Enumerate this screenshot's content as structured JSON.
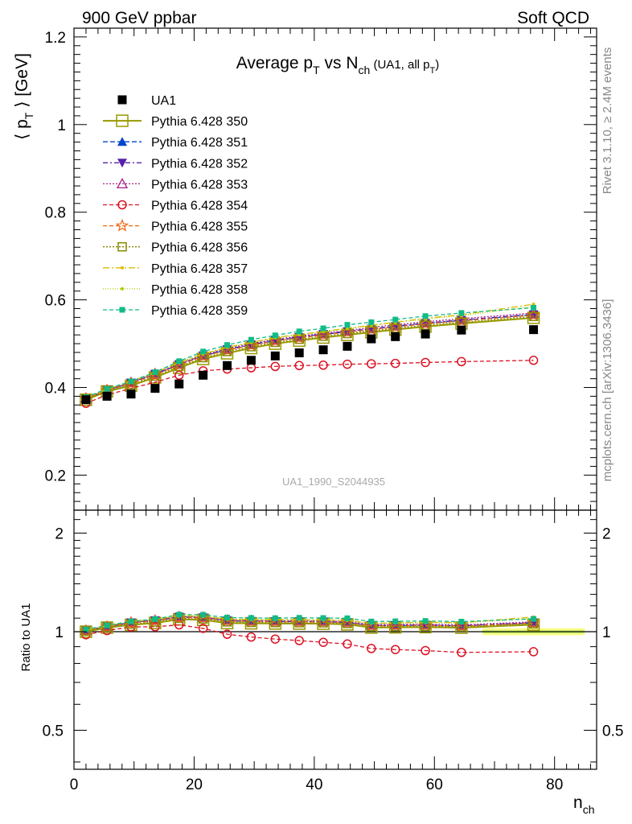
{
  "header": {
    "left": "900 GeV ppbar",
    "right": "Soft QCD"
  },
  "side_text": {
    "rivet": "Rivet 3.1.10, ≥ 2.4M events",
    "mcplots": "mcplots.cern.ch [arXiv:1306.3436]"
  },
  "chart_data": {
    "type": "line",
    "title": "Average pT vs Nch (UA1, all pT)",
    "title_parts": {
      "main": "Average p",
      "sub1": "T",
      "mid": " vs N",
      "sub2": "ch",
      "small": " (UA1, all p",
      "sub3": "T",
      "close": ")"
    },
    "analysis_label": "UA1_1990_S2044935",
    "xlabel": "n",
    "xlabel_sub": "ch",
    "ylabel": "⟨ p",
    "ylabel_sub": "T",
    "ylabel_tail": " ⟩ [GeV]",
    "ratio_ylabel": "Ratio to UA1",
    "xlim": [
      0,
      87
    ],
    "ylim": [
      0.12,
      1.22
    ],
    "ratio_ylim": [
      0.38,
      2.35
    ],
    "ratio_log": true,
    "x_ticks": [
      0,
      20,
      40,
      60,
      80
    ],
    "y_ticks": [
      0.2,
      0.4,
      0.6,
      0.8,
      1,
      1.2
    ],
    "ratio_ticks": [
      "0.5",
      "1",
      "2"
    ],
    "legend_position": "top-left",
    "x": [
      2,
      5.5,
      9.5,
      13.5,
      17.5,
      21.5,
      25.5,
      29.5,
      33.5,
      37.5,
      41.5,
      45.5,
      49.5,
      53.5,
      58.5,
      64.5,
      76.5
    ],
    "data": {
      "name": "UA1",
      "values": [
        0.372,
        0.38,
        0.385,
        0.398,
        0.408,
        0.428,
        0.45,
        0.462,
        0.472,
        0.479,
        0.486,
        0.494,
        0.511,
        0.516,
        0.522,
        0.531,
        0.532
      ]
    },
    "band": {
      "x_from": 68,
      "x_to": 85,
      "half_width": 0.025
    },
    "series": [
      {
        "name": "Pythia 6.428 350",
        "color": "#999900",
        "dash": "",
        "marker": "open-square",
        "values": [
          0.372,
          0.391,
          0.404,
          0.423,
          0.445,
          0.465,
          0.478,
          0.49,
          0.5,
          0.507,
          0.514,
          0.52,
          0.526,
          0.532,
          0.539,
          0.546,
          0.559
        ]
      },
      {
        "name": "Pythia 6.428 351",
        "color": "#0044cc",
        "dash": "6,3",
        "marker": "triangle-up",
        "values": [
          0.375,
          0.394,
          0.41,
          0.43,
          0.452,
          0.472,
          0.486,
          0.497,
          0.507,
          0.514,
          0.521,
          0.527,
          0.533,
          0.539,
          0.546,
          0.553,
          0.566
        ]
      },
      {
        "name": "Pythia 6.428 352",
        "color": "#5522aa",
        "dash": "6,3,2,3",
        "marker": "triangle-down",
        "values": [
          0.375,
          0.394,
          0.411,
          0.431,
          0.453,
          0.473,
          0.487,
          0.498,
          0.508,
          0.515,
          0.522,
          0.528,
          0.534,
          0.54,
          0.547,
          0.554,
          0.567
        ]
      },
      {
        "name": "Pythia 6.428 353",
        "color": "#aa2288",
        "dash": "2,2",
        "marker": "open-triangle",
        "values": [
          0.376,
          0.395,
          0.412,
          0.432,
          0.454,
          0.474,
          0.489,
          0.5,
          0.51,
          0.517,
          0.524,
          0.53,
          0.537,
          0.543,
          0.55,
          0.557,
          0.57
        ]
      },
      {
        "name": "Pythia 6.428 354",
        "color": "#dd1122",
        "dash": "5,3",
        "marker": "open-circle",
        "values": [
          0.364,
          0.383,
          0.398,
          0.412,
          0.428,
          0.438,
          0.442,
          0.445,
          0.448,
          0.45,
          0.451,
          0.453,
          0.454,
          0.455,
          0.457,
          0.459,
          0.462
        ]
      },
      {
        "name": "Pythia 6.428 355",
        "color": "#ee6611",
        "dash": "5,3",
        "marker": "open-star",
        "values": [
          0.374,
          0.393,
          0.409,
          0.429,
          0.451,
          0.471,
          0.485,
          0.496,
          0.506,
          0.513,
          0.52,
          0.526,
          0.532,
          0.538,
          0.545,
          0.552,
          0.565
        ]
      },
      {
        "name": "Pythia 6.428 356",
        "color": "#888800",
        "dash": "2,2",
        "marker": "open-square-small",
        "values": [
          0.373,
          0.392,
          0.406,
          0.426,
          0.448,
          0.468,
          0.482,
          0.493,
          0.503,
          0.51,
          0.517,
          0.523,
          0.529,
          0.535,
          0.542,
          0.549,
          0.562
        ]
      },
      {
        "name": "Pythia 6.428 357",
        "color": "#ddbb00",
        "dash": "8,3,2,3",
        "marker": "dot",
        "values": [
          0.376,
          0.396,
          0.414,
          0.434,
          0.457,
          0.477,
          0.492,
          0.503,
          0.514,
          0.521,
          0.528,
          0.535,
          0.542,
          0.549,
          0.558,
          0.566,
          0.59
        ]
      },
      {
        "name": "Pythia 6.428 358",
        "color": "#aacc00",
        "dash": "1,2",
        "marker": "dot",
        "values": [
          0.376,
          0.395,
          0.413,
          0.433,
          0.456,
          0.476,
          0.491,
          0.502,
          0.513,
          0.52,
          0.527,
          0.534,
          0.541,
          0.548,
          0.556,
          0.564,
          0.585
        ]
      },
      {
        "name": "Pythia 6.428 359",
        "color": "#11bb88",
        "dash": "5,3",
        "marker": "filled-square",
        "values": [
          0.378,
          0.397,
          0.414,
          0.435,
          0.46,
          0.482,
          0.497,
          0.509,
          0.519,
          0.528,
          0.535,
          0.543,
          0.549,
          0.555,
          0.563,
          0.57,
          0.582
        ]
      }
    ]
  }
}
